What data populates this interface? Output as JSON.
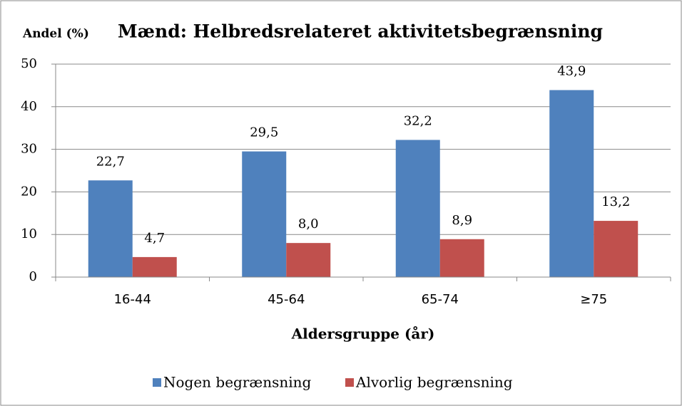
{
  "chart_data": {
    "type": "bar",
    "title": "Mænd: Helbredsrelateret aktivitetsbegrænsning",
    "ylabel": "Andel (%)",
    "xlabel": "Aldersgruppe (år)",
    "categories": [
      "16-44",
      "45-64",
      "65-74",
      "≥75"
    ],
    "series": [
      {
        "name": "Nogen begrænsning",
        "color": "#4f81bd",
        "values": [
          22.7,
          29.5,
          32.2,
          43.9
        ],
        "value_labels": [
          "22,7",
          "29,5",
          "32,2",
          "43,9"
        ]
      },
      {
        "name": "Alvorlig begrænsning",
        "color": "#c0504d",
        "values": [
          4.7,
          8.0,
          8.9,
          13.2
        ],
        "value_labels": [
          "4,7",
          "8,0",
          "8,9",
          "13,2"
        ]
      }
    ],
    "ylim": [
      0,
      50
    ],
    "yticks": [
      0,
      10,
      20,
      30,
      40,
      50
    ],
    "grid": true,
    "legend": "bottom"
  }
}
